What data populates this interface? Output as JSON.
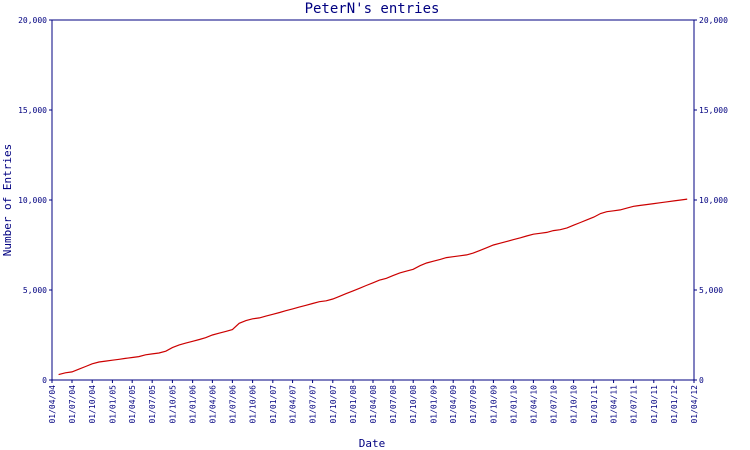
{
  "chart_data": {
    "type": "line",
    "title": "PeterN's entries",
    "xlabel": "Date",
    "ylabel": "Number of Entries",
    "ylim": [
      0,
      20000
    ],
    "y_ticks": [
      0,
      5000,
      10000,
      15000,
      20000
    ],
    "y_tick_labels": [
      "0",
      "5,000",
      "10,000",
      "15,000",
      "20,000"
    ],
    "x_tick_labels": [
      "01/04/04",
      "01/07/04",
      "01/10/04",
      "01/01/05",
      "01/04/05",
      "01/07/05",
      "01/10/05",
      "01/01/06",
      "01/04/06",
      "01/07/06",
      "01/10/06",
      "01/01/07",
      "01/04/07",
      "01/07/07",
      "01/10/07",
      "01/01/08",
      "01/04/08",
      "01/07/08",
      "01/10/08",
      "01/01/09",
      "01/04/09",
      "01/07/09",
      "01/10/09",
      "01/01/10",
      "01/04/10",
      "01/07/10",
      "01/10/10",
      "01/01/11",
      "01/04/11",
      "01/07/11",
      "01/10/11",
      "01/01/12",
      "01/04/12"
    ],
    "grid": false,
    "series": [
      {
        "color": "#cc0000",
        "points": [
          [
            "2004-05-01",
            300
          ],
          [
            "2004-06-01",
            400
          ],
          [
            "2004-07-01",
            450
          ],
          [
            "2004-08-01",
            600
          ],
          [
            "2004-09-01",
            750
          ],
          [
            "2004-10-01",
            900
          ],
          [
            "2004-11-01",
            1000
          ],
          [
            "2004-12-01",
            1050
          ],
          [
            "2005-01-01",
            1100
          ],
          [
            "2005-02-01",
            1150
          ],
          [
            "2005-03-01",
            1200
          ],
          [
            "2005-04-01",
            1250
          ],
          [
            "2005-05-01",
            1300
          ],
          [
            "2005-06-01",
            1400
          ],
          [
            "2005-07-01",
            1450
          ],
          [
            "2005-08-01",
            1500
          ],
          [
            "2005-09-01",
            1600
          ],
          [
            "2005-10-01",
            1800
          ],
          [
            "2005-11-01",
            1950
          ],
          [
            "2005-12-01",
            2050
          ],
          [
            "2006-01-01",
            2150
          ],
          [
            "2006-02-01",
            2250
          ],
          [
            "2006-03-01",
            2350
          ],
          [
            "2006-04-01",
            2500
          ],
          [
            "2006-05-01",
            2600
          ],
          [
            "2006-06-01",
            2700
          ],
          [
            "2006-07-01",
            2800
          ],
          [
            "2006-08-01",
            3150
          ],
          [
            "2006-09-01",
            3300
          ],
          [
            "2006-10-01",
            3400
          ],
          [
            "2006-11-01",
            3450
          ],
          [
            "2006-12-01",
            3550
          ],
          [
            "2007-01-01",
            3650
          ],
          [
            "2007-02-01",
            3750
          ],
          [
            "2007-03-01",
            3850
          ],
          [
            "2007-04-01",
            3950
          ],
          [
            "2007-05-01",
            4050
          ],
          [
            "2007-06-01",
            4150
          ],
          [
            "2007-07-01",
            4250
          ],
          [
            "2007-08-01",
            4350
          ],
          [
            "2007-09-01",
            4400
          ],
          [
            "2007-10-01",
            4500
          ],
          [
            "2007-11-01",
            4650
          ],
          [
            "2007-12-01",
            4800
          ],
          [
            "2008-01-01",
            4950
          ],
          [
            "2008-02-01",
            5100
          ],
          [
            "2008-03-01",
            5250
          ],
          [
            "2008-04-01",
            5400
          ],
          [
            "2008-05-01",
            5550
          ],
          [
            "2008-06-01",
            5650
          ],
          [
            "2008-07-01",
            5800
          ],
          [
            "2008-08-01",
            5950
          ],
          [
            "2008-09-01",
            6050
          ],
          [
            "2008-10-01",
            6150
          ],
          [
            "2008-11-01",
            6350
          ],
          [
            "2008-12-01",
            6500
          ],
          [
            "2009-01-01",
            6600
          ],
          [
            "2009-02-01",
            6700
          ],
          [
            "2009-03-01",
            6800
          ],
          [
            "2009-04-01",
            6850
          ],
          [
            "2009-05-01",
            6900
          ],
          [
            "2009-06-01",
            6950
          ],
          [
            "2009-07-01",
            7050
          ],
          [
            "2009-08-01",
            7200
          ],
          [
            "2009-09-01",
            7350
          ],
          [
            "2009-10-01",
            7500
          ],
          [
            "2009-11-01",
            7600
          ],
          [
            "2009-12-01",
            7700
          ],
          [
            "2010-01-01",
            7800
          ],
          [
            "2010-02-01",
            7900
          ],
          [
            "2010-03-01",
            8000
          ],
          [
            "2010-04-01",
            8100
          ],
          [
            "2010-05-01",
            8150
          ],
          [
            "2010-06-01",
            8200
          ],
          [
            "2010-07-01",
            8300
          ],
          [
            "2010-08-01",
            8350
          ],
          [
            "2010-09-01",
            8450
          ],
          [
            "2010-10-01",
            8600
          ],
          [
            "2010-11-01",
            8750
          ],
          [
            "2010-12-01",
            8900
          ],
          [
            "2011-01-01",
            9050
          ],
          [
            "2011-02-01",
            9250
          ],
          [
            "2011-03-01",
            9350
          ],
          [
            "2011-04-01",
            9400
          ],
          [
            "2011-05-01",
            9450
          ],
          [
            "2011-06-01",
            9550
          ],
          [
            "2011-07-01",
            9650
          ],
          [
            "2011-08-01",
            9700
          ],
          [
            "2011-09-01",
            9750
          ],
          [
            "2011-10-01",
            9800
          ],
          [
            "2011-11-01",
            9850
          ],
          [
            "2011-12-01",
            9900
          ],
          [
            "2012-01-01",
            9950
          ],
          [
            "2012-02-01",
            10000
          ],
          [
            "2012-03-01",
            10050
          ]
        ]
      }
    ]
  }
}
